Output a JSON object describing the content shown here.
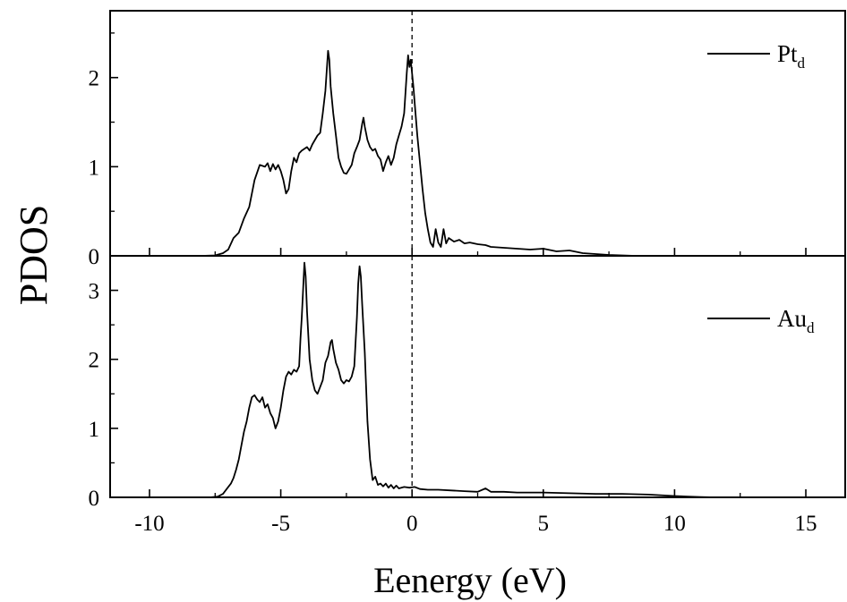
{
  "chart_data": {
    "type": "line",
    "xlabel": "Eenergy (eV)",
    "ylabel": "PDOS",
    "xlim": [
      -11.5,
      16.5
    ],
    "x_ticks": [
      -10,
      -5,
      0,
      5,
      10,
      15
    ],
    "x_tick_labels": [
      "-10",
      "-5",
      "0",
      "5",
      "10",
      "15"
    ],
    "fermi_level": 0,
    "fermi_line_style": "dashed",
    "line_color": "#000000",
    "panels": [
      {
        "id": "top",
        "ylim": [
          0,
          2.75
        ],
        "y_ticks": [
          0,
          1,
          2
        ],
        "y_tick_labels": [
          "0",
          "1",
          "2"
        ],
        "legend_position": "top-right",
        "series": {
          "name_main": "Pt",
          "name_sub": "d",
          "points": [
            [
              -11.5,
              0
            ],
            [
              -8,
              0
            ],
            [
              -7.5,
              0.005
            ],
            [
              -7.2,
              0.03
            ],
            [
              -7.0,
              0.07
            ],
            [
              -6.8,
              0.2
            ],
            [
              -6.6,
              0.26
            ],
            [
              -6.4,
              0.42
            ],
            [
              -6.2,
              0.55
            ],
            [
              -6.0,
              0.85
            ],
            [
              -5.8,
              1.02
            ],
            [
              -5.6,
              1.0
            ],
            [
              -5.5,
              1.04
            ],
            [
              -5.4,
              0.95
            ],
            [
              -5.3,
              1.03
            ],
            [
              -5.2,
              0.97
            ],
            [
              -5.1,
              1.02
            ],
            [
              -5.0,
              0.95
            ],
            [
              -4.9,
              0.85
            ],
            [
              -4.8,
              0.7
            ],
            [
              -4.7,
              0.75
            ],
            [
              -4.6,
              0.95
            ],
            [
              -4.5,
              1.1
            ],
            [
              -4.4,
              1.05
            ],
            [
              -4.3,
              1.15
            ],
            [
              -4.2,
              1.18
            ],
            [
              -4.0,
              1.22
            ],
            [
              -3.9,
              1.18
            ],
            [
              -3.8,
              1.25
            ],
            [
              -3.7,
              1.3
            ],
            [
              -3.6,
              1.35
            ],
            [
              -3.5,
              1.38
            ],
            [
              -3.4,
              1.6
            ],
            [
              -3.3,
              1.85
            ],
            [
              -3.2,
              2.3
            ],
            [
              -3.15,
              2.2
            ],
            [
              -3.1,
              1.9
            ],
            [
              -3.0,
              1.6
            ],
            [
              -2.9,
              1.35
            ],
            [
              -2.8,
              1.1
            ],
            [
              -2.7,
              1.0
            ],
            [
              -2.6,
              0.93
            ],
            [
              -2.5,
              0.92
            ],
            [
              -2.4,
              0.97
            ],
            [
              -2.3,
              1.02
            ],
            [
              -2.2,
              1.15
            ],
            [
              -2.1,
              1.22
            ],
            [
              -2.0,
              1.3
            ],
            [
              -1.9,
              1.48
            ],
            [
              -1.85,
              1.55
            ],
            [
              -1.8,
              1.45
            ],
            [
              -1.7,
              1.3
            ],
            [
              -1.6,
              1.22
            ],
            [
              -1.5,
              1.18
            ],
            [
              -1.4,
              1.2
            ],
            [
              -1.3,
              1.12
            ],
            [
              -1.2,
              1.08
            ],
            [
              -1.1,
              0.95
            ],
            [
              -1.0,
              1.05
            ],
            [
              -0.9,
              1.12
            ],
            [
              -0.8,
              1.02
            ],
            [
              -0.7,
              1.1
            ],
            [
              -0.6,
              1.25
            ],
            [
              -0.5,
              1.35
            ],
            [
              -0.4,
              1.45
            ],
            [
              -0.3,
              1.6
            ],
            [
              -0.2,
              2.05
            ],
            [
              -0.15,
              2.25
            ],
            [
              -0.1,
              2.12
            ],
            [
              -0.05,
              2.2
            ],
            [
              0.0,
              2.05
            ],
            [
              0.05,
              1.9
            ],
            [
              0.1,
              1.72
            ],
            [
              0.2,
              1.35
            ],
            [
              0.3,
              1.05
            ],
            [
              0.4,
              0.75
            ],
            [
              0.5,
              0.48
            ],
            [
              0.6,
              0.3
            ],
            [
              0.7,
              0.15
            ],
            [
              0.8,
              0.1
            ],
            [
              0.9,
              0.3
            ],
            [
              1.0,
              0.15
            ],
            [
              1.1,
              0.1
            ],
            [
              1.2,
              0.3
            ],
            [
              1.3,
              0.14
            ],
            [
              1.4,
              0.2
            ],
            [
              1.6,
              0.16
            ],
            [
              1.8,
              0.18
            ],
            [
              2.0,
              0.14
            ],
            [
              2.2,
              0.15
            ],
            [
              2.5,
              0.13
            ],
            [
              2.8,
              0.12
            ],
            [
              3.0,
              0.1
            ],
            [
              3.5,
              0.09
            ],
            [
              4.0,
              0.08
            ],
            [
              4.5,
              0.07
            ],
            [
              5.0,
              0.08
            ],
            [
              5.5,
              0.05
            ],
            [
              6.0,
              0.06
            ],
            [
              6.5,
              0.03
            ],
            [
              7.0,
              0.02
            ],
            [
              7.5,
              0.01
            ],
            [
              8.0,
              0.005
            ],
            [
              8.5,
              0
            ],
            [
              16.5,
              0
            ]
          ]
        }
      },
      {
        "id": "bottom",
        "ylim": [
          0,
          3.5
        ],
        "y_ticks": [
          0,
          1,
          2,
          3
        ],
        "y_tick_labels": [
          "0",
          "1",
          "2",
          "3"
        ],
        "legend_position": "right",
        "series": {
          "name_main": "Au",
          "name_sub": "d",
          "points": [
            [
              -11.5,
              0
            ],
            [
              -7.7,
              0
            ],
            [
              -7.4,
              0.01
            ],
            [
              -7.2,
              0.05
            ],
            [
              -7.0,
              0.15
            ],
            [
              -6.9,
              0.2
            ],
            [
              -6.8,
              0.28
            ],
            [
              -6.7,
              0.4
            ],
            [
              -6.6,
              0.55
            ],
            [
              -6.5,
              0.75
            ],
            [
              -6.4,
              0.95
            ],
            [
              -6.3,
              1.1
            ],
            [
              -6.2,
              1.3
            ],
            [
              -6.1,
              1.45
            ],
            [
              -6.0,
              1.48
            ],
            [
              -5.9,
              1.42
            ],
            [
              -5.8,
              1.38
            ],
            [
              -5.7,
              1.45
            ],
            [
              -5.6,
              1.3
            ],
            [
              -5.5,
              1.35
            ],
            [
              -5.4,
              1.22
            ],
            [
              -5.3,
              1.15
            ],
            [
              -5.2,
              1.0
            ],
            [
              -5.1,
              1.1
            ],
            [
              -5.0,
              1.3
            ],
            [
              -4.9,
              1.55
            ],
            [
              -4.8,
              1.75
            ],
            [
              -4.7,
              1.82
            ],
            [
              -4.6,
              1.78
            ],
            [
              -4.5,
              1.85
            ],
            [
              -4.4,
              1.82
            ],
            [
              -4.3,
              1.9
            ],
            [
              -4.25,
              2.3
            ],
            [
              -4.2,
              2.6
            ],
            [
              -4.15,
              3.0
            ],
            [
              -4.1,
              3.4
            ],
            [
              -4.05,
              3.2
            ],
            [
              -4.0,
              2.7
            ],
            [
              -3.9,
              2.0
            ],
            [
              -3.8,
              1.7
            ],
            [
              -3.7,
              1.55
            ],
            [
              -3.6,
              1.5
            ],
            [
              -3.5,
              1.6
            ],
            [
              -3.4,
              1.7
            ],
            [
              -3.3,
              1.95
            ],
            [
              -3.2,
              2.05
            ],
            [
              -3.1,
              2.25
            ],
            [
              -3.05,
              2.28
            ],
            [
              -3.0,
              2.15
            ],
            [
              -2.9,
              1.95
            ],
            [
              -2.8,
              1.85
            ],
            [
              -2.7,
              1.7
            ],
            [
              -2.6,
              1.65
            ],
            [
              -2.5,
              1.7
            ],
            [
              -2.4,
              1.68
            ],
            [
              -2.3,
              1.75
            ],
            [
              -2.2,
              1.9
            ],
            [
              -2.1,
              2.6
            ],
            [
              -2.05,
              3.1
            ],
            [
              -2.0,
              3.35
            ],
            [
              -1.95,
              3.2
            ],
            [
              -1.9,
              2.8
            ],
            [
              -1.8,
              2.1
            ],
            [
              -1.7,
              1.1
            ],
            [
              -1.6,
              0.55
            ],
            [
              -1.5,
              0.25
            ],
            [
              -1.4,
              0.3
            ],
            [
              -1.3,
              0.18
            ],
            [
              -1.2,
              0.2
            ],
            [
              -1.1,
              0.16
            ],
            [
              -1.0,
              0.2
            ],
            [
              -0.9,
              0.14
            ],
            [
              -0.8,
              0.18
            ],
            [
              -0.7,
              0.13
            ],
            [
              -0.6,
              0.17
            ],
            [
              -0.5,
              0.13
            ],
            [
              -0.3,
              0.15
            ],
            [
              -0.1,
              0.14
            ],
            [
              0.1,
              0.15
            ],
            [
              0.3,
              0.12
            ],
            [
              0.6,
              0.11
            ],
            [
              1.0,
              0.11
            ],
            [
              1.5,
              0.1
            ],
            [
              2.0,
              0.09
            ],
            [
              2.5,
              0.08
            ],
            [
              2.8,
              0.13
            ],
            [
              3.0,
              0.08
            ],
            [
              3.5,
              0.08
            ],
            [
              4.0,
              0.07
            ],
            [
              5.0,
              0.07
            ],
            [
              6.0,
              0.06
            ],
            [
              7.0,
              0.05
            ],
            [
              8.0,
              0.05
            ],
            [
              9.0,
              0.04
            ],
            [
              10.0,
              0.02
            ],
            [
              10.5,
              0.01
            ],
            [
              11.0,
              0.005
            ],
            [
              11.5,
              0
            ],
            [
              16.5,
              0
            ]
          ]
        }
      }
    ]
  }
}
